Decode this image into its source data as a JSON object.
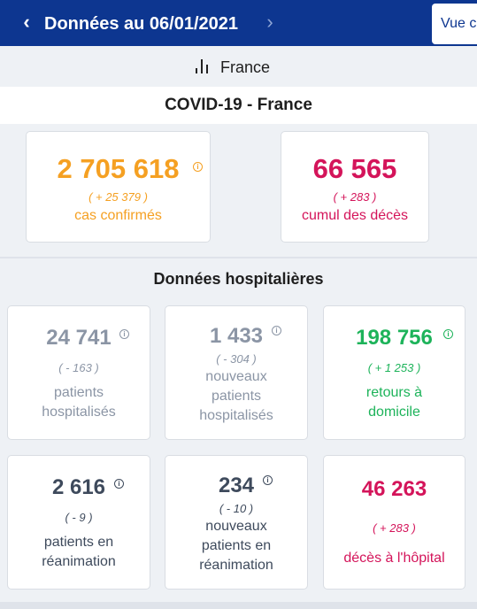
{
  "header": {
    "prev_label": "‹",
    "title": "Données au 06/01/2021",
    "next_label": "›",
    "view_button_label": "Vue c"
  },
  "region": {
    "icon": "bar-chart-icon",
    "label": "France"
  },
  "section_title": "COVID-19 - France",
  "summary": {
    "confirmed": {
      "value": "2 705 618",
      "delta": "( + 25 379 )",
      "label": "cas confirmés",
      "color": "#f5a022"
    },
    "deaths": {
      "value": "66 565",
      "delta": "( + 283 )",
      "label": "cumul des décès",
      "color": "#d4145a"
    }
  },
  "hospital_title": "Données hospitalières",
  "hospital": [
    {
      "value": "24 741",
      "delta": "( - 163 )",
      "label_lines": [
        "patients",
        "hospitalisés"
      ],
      "color": "#8b95a5"
    },
    {
      "value": "1 433",
      "delta": "( - 304 )",
      "label_lines": [
        "nouveaux",
        "patients",
        "hospitalisés"
      ],
      "color": "#8b95a5"
    },
    {
      "value": "198 756",
      "delta": "( + 1 253 )",
      "label_lines": [
        "retours à",
        "domicile"
      ],
      "color": "#1db35a"
    },
    {
      "value": "2 616",
      "delta": "( - 9 )",
      "label_lines": [
        "patients en",
        "réanimation"
      ],
      "color": "#3e4a5c"
    },
    {
      "value": "234",
      "delta": "( - 10 )",
      "label_lines": [
        "nouveaux",
        "patients en",
        "réanimation"
      ],
      "color": "#3e4a5c"
    },
    {
      "value": "46 263",
      "delta": "( + 283 )",
      "label_lines": [
        "décès à l'hôpital"
      ],
      "color": "#d4145a"
    }
  ],
  "info_icon": "info-icon"
}
